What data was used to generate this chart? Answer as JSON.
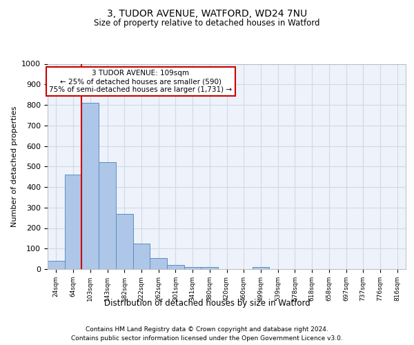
{
  "title1": "3, TUDOR AVENUE, WATFORD, WD24 7NU",
  "title2": "Size of property relative to detached houses in Watford",
  "xlabel": "Distribution of detached houses by size in Watford",
  "ylabel": "Number of detached properties",
  "categories": [
    "24sqm",
    "64sqm",
    "103sqm",
    "143sqm",
    "182sqm",
    "222sqm",
    "262sqm",
    "301sqm",
    "341sqm",
    "380sqm",
    "420sqm",
    "460sqm",
    "499sqm",
    "539sqm",
    "578sqm",
    "618sqm",
    "658sqm",
    "697sqm",
    "737sqm",
    "776sqm",
    "816sqm"
  ],
  "values": [
    40,
    460,
    810,
    520,
    270,
    125,
    55,
    20,
    10,
    10,
    0,
    0,
    10,
    0,
    0,
    0,
    0,
    0,
    0,
    0,
    0
  ],
  "bar_color": "#aec6e8",
  "bar_edge_color": "#5a8fc2",
  "vline_color": "#cc0000",
  "vline_pos": 1.5,
  "annotation_text": "3 TUDOR AVENUE: 109sqm\n← 25% of detached houses are smaller (590)\n75% of semi-detached houses are larger (1,731) →",
  "annotation_box_color": "#ffffff",
  "annotation_box_edge": "#cc0000",
  "ylim": [
    0,
    1000
  ],
  "yticks": [
    0,
    100,
    200,
    300,
    400,
    500,
    600,
    700,
    800,
    900,
    1000
  ],
  "grid_color": "#d0d8e8",
  "bg_color": "#eef2fa",
  "footer1": "Contains HM Land Registry data © Crown copyright and database right 2024.",
  "footer2": "Contains public sector information licensed under the Open Government Licence v3.0."
}
